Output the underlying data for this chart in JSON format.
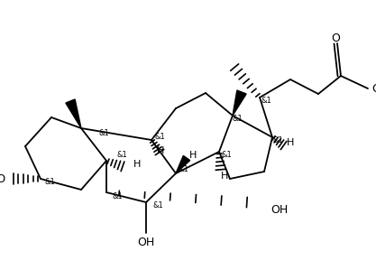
{
  "bg_color": "#ffffff",
  "line_color": "#000000",
  "figsize": [
    4.17,
    2.99
  ],
  "dpi": 100,
  "xlim": [
    0,
    417
  ],
  "ylim": [
    0,
    299
  ]
}
